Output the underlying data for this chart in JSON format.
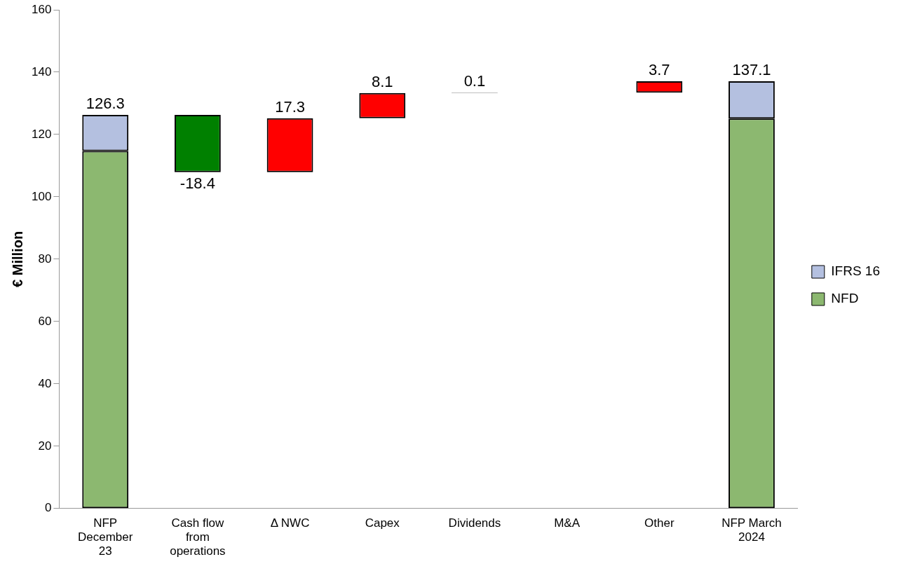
{
  "chart_data": {
    "type": "bar",
    "ylabel": "€ Million",
    "categories": [
      "NFP December 23",
      "Cash flow from operations",
      "Δ NWC",
      "Capex",
      "Dividends",
      "M&A",
      "Other",
      "NFP March 2024"
    ],
    "stacked": true,
    "series": [
      {
        "name": "NFD",
        "color": "#8cb870",
        "values": [
          114.7,
          null,
          null,
          null,
          null,
          null,
          null,
          125.1
        ]
      },
      {
        "name": "IFRS 16",
        "color": "#b4c0e0",
        "values": [
          11.6,
          null,
          null,
          null,
          null,
          null,
          null,
          12.0
        ]
      },
      {
        "type": "bar",
        "colors": [
          "#ff0000",
          "#008000",
          "#ff0000",
          "#ff0000",
          "#000000",
          "#ff0000",
          "#ff0000",
          "#ff0000"
        ],
        "values": [
          null,
          -18.4,
          17.3,
          8.1,
          0.1,
          null,
          3.7,
          null
        ],
        "base": [
          null,
          126.3,
          107.9,
          125.2,
          133.3,
          null,
          133.4,
          null
        ],
        "value_labels": [
          null,
          "-18.4",
          "17.3",
          "8.1",
          "0.1",
          null,
          "3.7",
          null
        ]
      }
    ],
    "totals": [
      "126.3",
      null,
      null,
      null,
      null,
      null,
      null,
      "137.1"
    ],
    "ylim": [
      0,
      160
    ],
    "yticks": [
      0,
      20,
      40,
      60,
      80,
      100,
      120,
      140,
      160
    ],
    "grid": false,
    "legend": "right"
  }
}
